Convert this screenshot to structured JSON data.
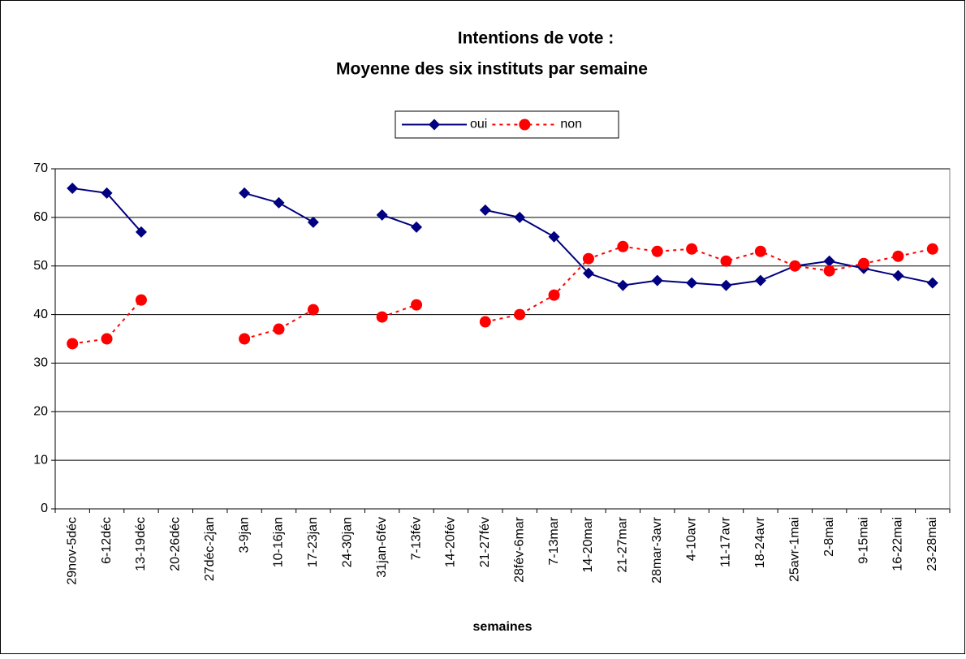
{
  "chart_data": {
    "type": "line",
    "title": "Intentions de vote :",
    "subtitle": "Moyenne des six instituts par semaine",
    "x_label": "semaines",
    "categories": [
      "29nov-5déc",
      "6-12déc",
      "13-19déc",
      "20-26déc",
      "27déc-2jan",
      "3-9jan",
      "10-16jan",
      "17-23jan",
      "24-30jan",
      "31jan-6fév",
      "7-13fév",
      "14-20fév",
      "21-27fév",
      "28fév-6mar",
      "7-13mar",
      "14-20mar",
      "21-27mar",
      "28mar-3avr",
      "4-10avr",
      "11-17avr",
      "18-24avr",
      "25avr-1mai",
      "2-8mai",
      "9-15mai",
      "16-22mai",
      "23-28mai"
    ],
    "series": [
      {
        "name": "oui",
        "color": "#000080",
        "marker": "diamond",
        "line": "solid",
        "values": [
          66,
          65,
          57,
          null,
          null,
          65,
          63,
          59,
          null,
          60.5,
          58,
          null,
          61.5,
          60,
          56,
          48.5,
          46,
          47,
          46.5,
          46,
          47,
          50,
          51,
          49.5,
          48,
          46.5
        ]
      },
      {
        "name": "non",
        "color": "#ff0000",
        "marker": "circle",
        "line": "dotted",
        "values": [
          34,
          35,
          43,
          null,
          null,
          35,
          37,
          41,
          null,
          39.5,
          42,
          null,
          38.5,
          40,
          44,
          51.5,
          54,
          53,
          53.5,
          51,
          53,
          50,
          49,
          50.5,
          52,
          53.5
        ]
      }
    ],
    "ylim": [
      0,
      70
    ],
    "yticks": [
      0,
      10,
      20,
      30,
      40,
      50,
      60,
      70
    ],
    "grid": true,
    "legend": "top"
  }
}
